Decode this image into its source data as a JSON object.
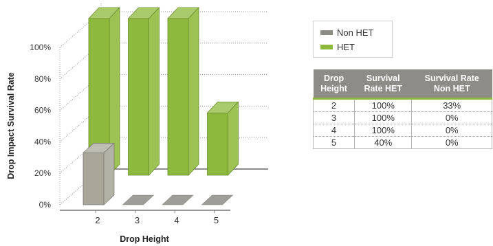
{
  "chart_data": {
    "type": "bar",
    "title": "",
    "xlabel": "Drop Height",
    "ylabel": "Drop Impact Survival Rate",
    "categories": [
      "2",
      "3",
      "4",
      "5"
    ],
    "yticks": [
      "0%",
      "20%",
      "40%",
      "60%",
      "80%",
      "100%"
    ],
    "ylim": [
      0,
      100
    ],
    "three_d": true,
    "grid": "dotted",
    "series": [
      {
        "name": "Non HET",
        "values": [
          33,
          0,
          0,
          0
        ]
      },
      {
        "name": "HET",
        "values": [
          100,
          100,
          100,
          40
        ]
      }
    ]
  },
  "colors": {
    "non_het": "#a8a79a",
    "het": "#8dba3c"
  },
  "legend": {
    "items": [
      {
        "label": "Non HET",
        "color": "#8e8c86"
      },
      {
        "label": "HET",
        "color": "#8dba3c"
      }
    ]
  },
  "table": {
    "headers": [
      [
        "Drop",
        "Height"
      ],
      [
        "Survival",
        "Rate HET"
      ],
      [
        "Survival Rate",
        "Non HET"
      ]
    ],
    "rows": [
      [
        "2",
        "100%",
        "33%"
      ],
      [
        "3",
        "100%",
        "0%"
      ],
      [
        "4",
        "100%",
        "0%"
      ],
      [
        "5",
        "40%",
        "0%"
      ]
    ]
  }
}
